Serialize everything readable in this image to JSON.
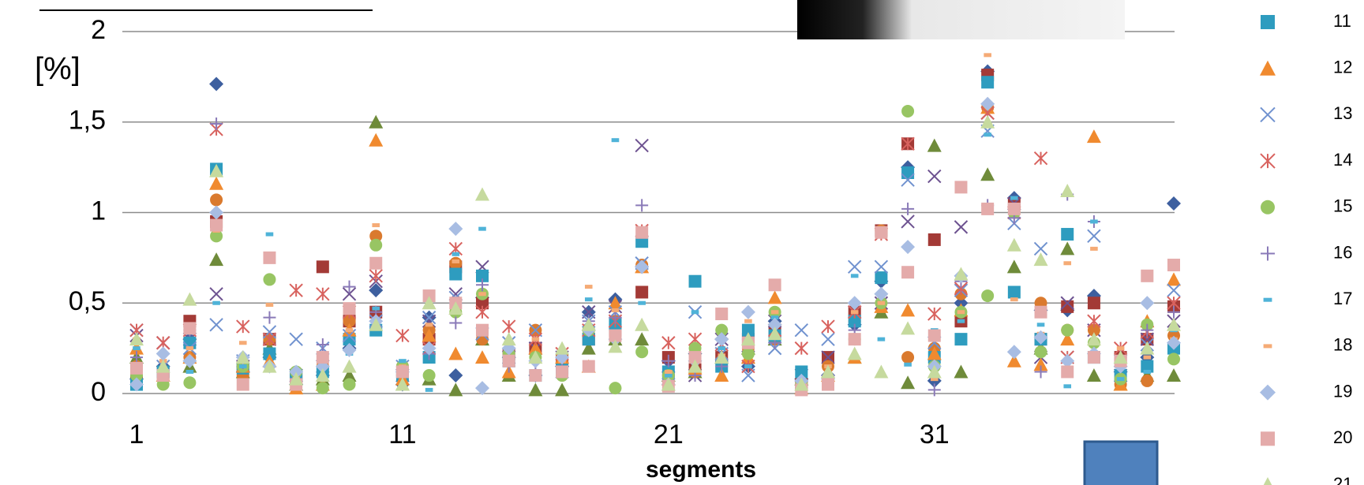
{
  "chart_data": {
    "type": "scatter",
    "y_axis_label": "[%]",
    "x_axis_label": "segments",
    "x": [
      1,
      2,
      3,
      4,
      5,
      6,
      7,
      8,
      9,
      10,
      11,
      12,
      13,
      14,
      15,
      16,
      17,
      18,
      19,
      20,
      21,
      22,
      23,
      24,
      25,
      26,
      27,
      28,
      29,
      30,
      31,
      32,
      33,
      34,
      35,
      36,
      37,
      38,
      39,
      40
    ],
    "xlim": [
      1,
      40
    ],
    "xticks": [
      1,
      11,
      21,
      31
    ],
    "ylim": [
      0,
      2
    ],
    "yticks": [
      0,
      {
        "value": 0.5,
        "label": "0,5"
      },
      1,
      {
        "value": 1.5,
        "label": "1,5"
      },
      2
    ],
    "grid": true,
    "legend": "right",
    "series": [
      {
        "color": "#3d5f9f",
        "marker": "diamond",
        "values": [
          0.08,
          0.15,
          0.3,
          1.71,
          0.12,
          0.2,
          0.05,
          0.1,
          0.25,
          0.57,
          0.05,
          0.42,
          0.1,
          0.53,
          0.2,
          0.1,
          0.15,
          0.45,
          0.52,
          0.7,
          0.18,
          0.22,
          0.3,
          0.15,
          0.4,
          0.08,
          0.1,
          0.38,
          0.62,
          1.25,
          0.07,
          0.5,
          1.78,
          1.08,
          0.46,
          0.46,
          0.54,
          0.12,
          0.2,
          1.05
        ]
      },
      {
        "color": "#a33a36",
        "marker": "square",
        "values": [
          0.1,
          0.12,
          0.4,
          0.95,
          0.15,
          0.3,
          0.08,
          0.7,
          0.4,
          0.45,
          0.12,
          0.3,
          0.7,
          0.5,
          0.22,
          0.25,
          0.18,
          0.3,
          0.35,
          0.56,
          0.2,
          0.15,
          0.2,
          0.3,
          0.35,
          0.05,
          0.2,
          0.45,
          0.9,
          1.38,
          0.85,
          0.4,
          1.76,
          1.05,
          0.3,
          0.48,
          0.5,
          0.2,
          0.3,
          0.48
        ]
      },
      {
        "color": "#6f8b3a",
        "marker": "triangle",
        "values": [
          0.2,
          0.1,
          0.15,
          0.74,
          0.12,
          0.25,
          0.05,
          0.08,
          0.1,
          1.5,
          0.05,
          0.08,
          0.02,
          0.3,
          0.1,
          0.02,
          0.02,
          0.25,
          0.3,
          0.3,
          0.1,
          0.12,
          0.2,
          0.25,
          0.3,
          0.08,
          0.12,
          0.2,
          0.45,
          0.06,
          1.37,
          0.12,
          1.21,
          0.7,
          0.25,
          0.8,
          0.1,
          0.05,
          0.1,
          0.1
        ]
      },
      {
        "color": "#6d5290",
        "marker": "x",
        "values": [
          0.32,
          0.28,
          0.3,
          0.55,
          0.15,
          0.3,
          0.1,
          0.15,
          0.55,
          0.62,
          0.1,
          0.4,
          0.55,
          0.7,
          0.2,
          0.25,
          0.2,
          0.45,
          0.48,
          1.37,
          0.15,
          0.1,
          0.3,
          0.2,
          0.4,
          0.1,
          0.2,
          0.45,
          0.5,
          0.95,
          1.2,
          0.92,
          1.55,
          1.05,
          0.2,
          0.5,
          0.35,
          0.1,
          0.3,
          0.4
        ]
      },
      {
        "color": "#da7a2e",
        "marker": "circle",
        "values": [
          0.15,
          0.08,
          0.2,
          1.07,
          0.1,
          0.3,
          0.08,
          0.15,
          0.4,
          0.87,
          0.15,
          0.35,
          0.72,
          0.3,
          0.2,
          0.35,
          0.2,
          0.35,
          0.4,
          0.71,
          0.1,
          0.12,
          0.18,
          0.25,
          0.3,
          0.05,
          0.15,
          0.4,
          0.9,
          0.2,
          0.25,
          0.55,
          1.58,
          1.02,
          0.5,
          0.35,
          0.35,
          0.05,
          0.07,
          0.32
        ]
      },
      {
        "name": "11",
        "color": "#2e9cbf",
        "marker": "square",
        "values": [
          0.05,
          0.12,
          0.28,
          1.24,
          0.14,
          0.22,
          0.1,
          0.12,
          0.3,
          0.35,
          0.1,
          0.2,
          0.66,
          0.65,
          0.18,
          0.1,
          0.14,
          0.3,
          0.38,
          0.84,
          0.12,
          0.62,
          0.15,
          0.35,
          0.32,
          0.12,
          0.05,
          0.4,
          0.64,
          1.22,
          0.2,
          0.3,
          1.72,
          0.56,
          0.3,
          0.88,
          0.2,
          0.1,
          0.15,
          0.25
        ]
      },
      {
        "name": "12",
        "color": "#f08a2f",
        "marker": "triangle",
        "values": [
          0.25,
          0.1,
          0.2,
          1.16,
          0.15,
          0.18,
          0.03,
          0.05,
          0.35,
          1.4,
          0.08,
          0.32,
          0.22,
          0.2,
          0.12,
          0.25,
          0.2,
          0.15,
          0.5,
          0.7,
          0.08,
          0.14,
          0.1,
          0.2,
          0.53,
          0.03,
          0.1,
          0.2,
          0.48,
          0.46,
          0.22,
          0.46,
          1.58,
          0.18,
          0.16,
          0.3,
          1.42,
          0.05,
          0.4,
          0.63
        ]
      },
      {
        "name": "13",
        "color": "#7092cf",
        "marker": "x",
        "values": [
          0.35,
          0.15,
          0.25,
          0.38,
          0.18,
          0.34,
          0.3,
          0.25,
          0.32,
          0.4,
          0.15,
          0.42,
          0.53,
          0.33,
          0.28,
          0.35,
          0.12,
          0.4,
          0.45,
          0.72,
          0.05,
          0.45,
          0.22,
          0.1,
          0.25,
          0.35,
          0.3,
          0.7,
          0.7,
          1.18,
          0.28,
          0.57,
          1.45,
          0.94,
          0.8,
          0.2,
          0.87,
          0.18,
          0.27,
          0.57
        ]
      },
      {
        "name": "14",
        "color": "#d8625e",
        "marker": "star",
        "values": [
          0.35,
          0.28,
          0.35,
          1.46,
          0.37,
          0.3,
          0.57,
          0.55,
          0.45,
          0.65,
          0.32,
          0.25,
          0.8,
          0.45,
          0.37,
          0.3,
          0.22,
          0.35,
          0.4,
          0.9,
          0.28,
          0.3,
          0.27,
          0.15,
          0.35,
          0.25,
          0.37,
          0.45,
          0.88,
          1.38,
          0.44,
          0.58,
          1.55,
          1.0,
          1.3,
          0.2,
          0.4,
          0.25,
          0.34,
          0.5
        ]
      },
      {
        "name": "15",
        "color": "#98c563",
        "marker": "circle",
        "values": [
          0.1,
          0.05,
          0.06,
          0.87,
          0.15,
          0.63,
          0.12,
          0.03,
          0.05,
          0.82,
          0.15,
          0.1,
          0.45,
          0.55,
          0.22,
          0.2,
          0.1,
          0.35,
          0.03,
          0.23,
          0.1,
          0.25,
          0.35,
          0.22,
          0.45,
          0.05,
          0.08,
          0.3,
          0.5,
          1.56,
          0.15,
          0.45,
          0.54,
          1.0,
          0.23,
          0.35,
          0.28,
          0.08,
          0.38,
          0.19
        ]
      },
      {
        "name": "16",
        "color": "#8a7ab8",
        "marker": "plus",
        "values": [
          0.2,
          0.12,
          0.35,
          1.49,
          0.17,
          0.42,
          0.05,
          0.27,
          0.59,
          0.45,
          0.1,
          0.22,
          0.39,
          0.6,
          0.15,
          0.12,
          0.15,
          0.4,
          0.42,
          1.04,
          0.18,
          0.1,
          0.15,
          0.3,
          0.28,
          0.03,
          0.1,
          0.35,
          0.55,
          1.02,
          0.02,
          0.62,
          1.04,
          0.97,
          0.12,
          1.1,
          0.95,
          0.2,
          0.35,
          0.45
        ]
      },
      {
        "name": "17",
        "color": "#4fb3d8",
        "marker": "dash",
        "values": [
          0.25,
          0.14,
          0.12,
          0.5,
          0.15,
          0.88,
          0.12,
          0.2,
          0.22,
          0.47,
          0.18,
          0.02,
          0.77,
          0.91,
          0.2,
          0.12,
          0.1,
          0.52,
          1.4,
          0.5,
          0.1,
          0.45,
          0.25,
          0.15,
          0.42,
          0.05,
          0.07,
          0.65,
          0.3,
          0.16,
          0.35,
          0.4,
          1.43,
          1.08,
          0.38,
          0.04,
          0.95,
          0.08,
          0.12,
          0.35
        ]
      },
      {
        "name": "18",
        "color": "#f5ab76",
        "marker": "dash",
        "values": [
          0.3,
          0.18,
          0.25,
          0.9,
          0.28,
          0.49,
          0.08,
          0.15,
          0.35,
          0.93,
          0.15,
          0.38,
          0.73,
          0.55,
          0.25,
          0.3,
          0.18,
          0.59,
          0.46,
          0.7,
          0.12,
          0.2,
          0.21,
          0.4,
          0.45,
          0.08,
          0.15,
          0.45,
          0.5,
          0.65,
          0.08,
          0.45,
          1.87,
          0.52,
          0.33,
          0.72,
          0.8,
          0.25,
          0.2,
          0.3
        ]
      },
      {
        "name": "19",
        "color": "#a8bde3",
        "marker": "diamond",
        "values": [
          0.05,
          0.22,
          0.18,
          1.0,
          0.2,
          0.15,
          0.12,
          0.15,
          0.24,
          0.4,
          0.12,
          0.25,
          0.91,
          0.03,
          0.25,
          0.18,
          0.2,
          0.35,
          0.3,
          0.7,
          0.05,
          0.18,
          0.3,
          0.45,
          0.38,
          0.07,
          0.08,
          0.5,
          0.55,
          0.81,
          0.15,
          0.65,
          1.6,
          0.23,
          0.31,
          0.18,
          0.22,
          0.15,
          0.5,
          0.28
        ]
      },
      {
        "name": "20",
        "color": "#e4abaa",
        "marker": "square",
        "values": [
          0.14,
          0.1,
          0.36,
          0.93,
          0.05,
          0.75,
          0.05,
          0.2,
          0.47,
          0.72,
          0.12,
          0.54,
          0.5,
          0.35,
          0.18,
          0.1,
          0.12,
          0.15,
          0.32,
          0.89,
          0.04,
          0.2,
          0.44,
          0.28,
          0.6,
          0.02,
          0.05,
          0.3,
          0.89,
          0.67,
          0.32,
          1.14,
          1.02,
          1.02,
          0.45,
          0.12,
          0.2,
          0.18,
          0.65,
          0.71
        ]
      },
      {
        "name": "21",
        "color": "#c6da9e",
        "marker": "triangle",
        "values": [
          0.3,
          0.15,
          0.52,
          1.23,
          0.2,
          0.15,
          0.08,
          0.1,
          0.15,
          0.38,
          0.05,
          0.5,
          0.47,
          1.1,
          0.3,
          0.2,
          0.25,
          0.38,
          0.26,
          0.38,
          0.05,
          0.15,
          0.2,
          0.3,
          0.33,
          0.05,
          0.12,
          0.22,
          0.12,
          0.36,
          0.12,
          0.66,
          1.5,
          0.82,
          0.74,
          1.12,
          0.3,
          0.2,
          0.25,
          0.38
        ]
      }
    ]
  }
}
